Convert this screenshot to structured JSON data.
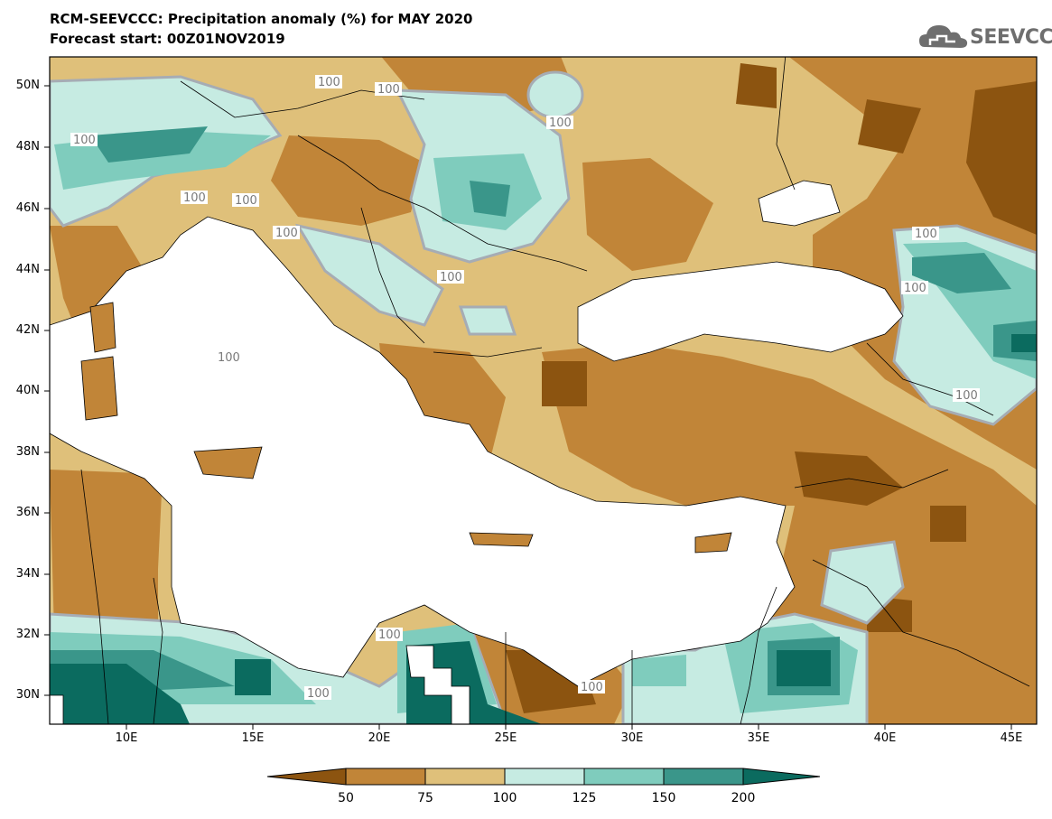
{
  "title_line1": "RCM-SEEVCCC: Precipitation anomaly (%) for MAY 2020",
  "title_line2": "Forecast start: 00Z01NOV2019",
  "logo_text": "SEEVCCC",
  "lat_labels": [
    "50N",
    "48N",
    "46N",
    "44N",
    "42N",
    "40N",
    "38N",
    "36N",
    "34N",
    "32N",
    "30N"
  ],
  "lon_labels": [
    "10E",
    "15E",
    "20E",
    "25E",
    "30E",
    "35E",
    "40E",
    "45E"
  ],
  "contour_labels": [
    "100",
    "100",
    "100",
    "100",
    "100",
    "100",
    "100",
    "100",
    "100",
    "100",
    "100",
    "100",
    "100",
    "100",
    "100"
  ],
  "colorbar": {
    "ticks": [
      "50",
      "75",
      "100",
      "125",
      "150",
      "200"
    ],
    "colors": [
      "#8c5410",
      "#c18538",
      "#dfc07a",
      "#c6ebe2",
      "#7fccbd",
      "#3a968a",
      "#0b6b5f"
    ]
  },
  "colors": {
    "land_mask": "#ffffff",
    "contour_line": "#a6acb4",
    "border_line": "#000000"
  }
}
